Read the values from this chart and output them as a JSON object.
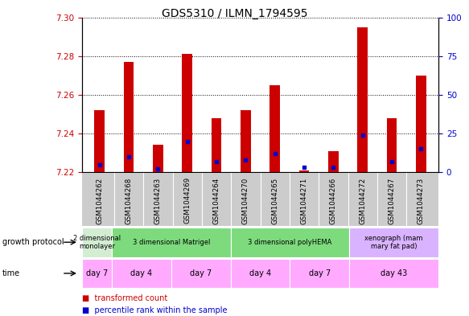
{
  "title": "GDS5310 / ILMN_1794595",
  "samples": [
    "GSM1044262",
    "GSM1044268",
    "GSM1044263",
    "GSM1044269",
    "GSM1044264",
    "GSM1044270",
    "GSM1044265",
    "GSM1044271",
    "GSM1044266",
    "GSM1044272",
    "GSM1044267",
    "GSM1044273"
  ],
  "red_values": [
    7.252,
    7.277,
    7.234,
    7.281,
    7.248,
    7.252,
    7.265,
    7.221,
    7.231,
    7.295,
    7.248,
    7.27
  ],
  "blue_percentile": [
    5,
    10,
    2,
    20,
    7,
    8,
    12,
    3,
    3,
    24,
    7,
    15
  ],
  "bar_base": 7.22,
  "ylim_left": [
    7.22,
    7.3
  ],
  "ylim_right": [
    0,
    100
  ],
  "yticks_left": [
    7.22,
    7.24,
    7.26,
    7.28,
    7.3
  ],
  "yticks_right": [
    0,
    25,
    50,
    75,
    100
  ],
  "growth_protocol_groups": [
    {
      "label": "2 dimensional\nmonolayer",
      "start": 0,
      "end": 1,
      "color": "#d3edd3"
    },
    {
      "label": "3 dimensional Matrigel",
      "start": 1,
      "end": 5,
      "color": "#7ddb7d"
    },
    {
      "label": "3 dimensional polyHEMA",
      "start": 5,
      "end": 9,
      "color": "#7ddb7d"
    },
    {
      "label": "xenograph (mam\nmary fat pad)",
      "start": 9,
      "end": 12,
      "color": "#d9b3ff"
    }
  ],
  "time_groups": [
    {
      "label": "day 7",
      "start": 0,
      "end": 1
    },
    {
      "label": "day 4",
      "start": 1,
      "end": 3
    },
    {
      "label": "day 7",
      "start": 3,
      "end": 5
    },
    {
      "label": "day 4",
      "start": 5,
      "end": 7
    },
    {
      "label": "day 7",
      "start": 7,
      "end": 9
    },
    {
      "label": "day 43",
      "start": 9,
      "end": 12
    }
  ],
  "time_color": "#ffaaff",
  "bar_color_red": "#cc0000",
  "bar_color_blue": "#0000cc",
  "axis_color_left": "#cc0000",
  "axis_color_right": "#0000cc",
  "sample_bg_color": "#cccccc",
  "bar_width": 0.35,
  "fig_width": 5.83,
  "fig_height": 3.93,
  "dpi": 100
}
